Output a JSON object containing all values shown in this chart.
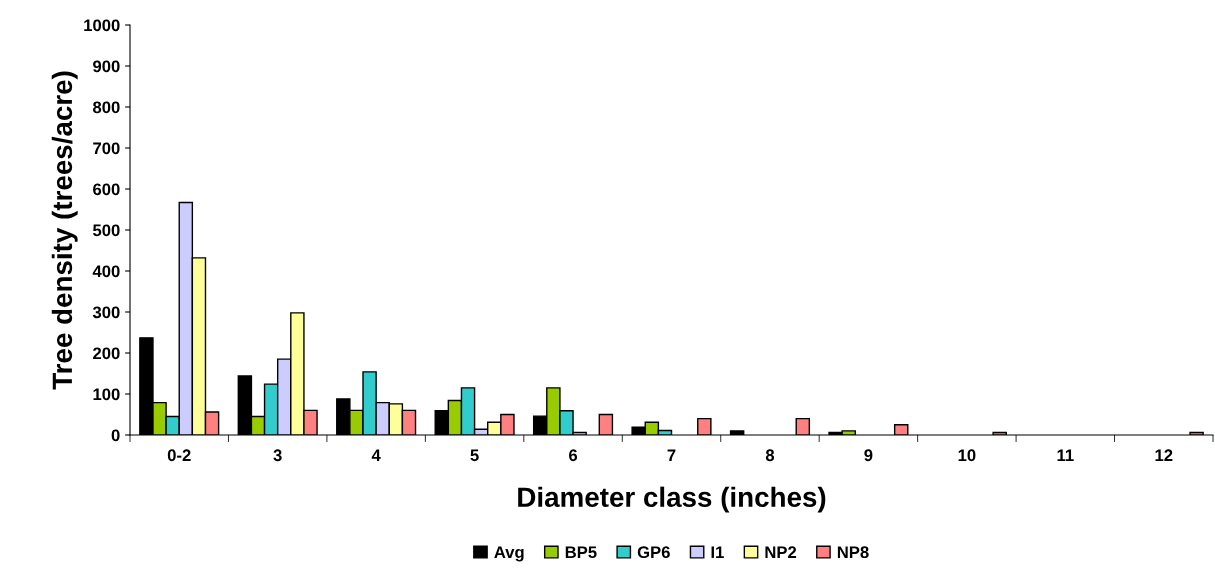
{
  "chart_data": {
    "type": "bar",
    "xlabel": "Diameter class (inches)",
    "ylabel": "Tree density (trees/acre)",
    "categories": [
      "0-2",
      "3",
      "4",
      "5",
      "6",
      "7",
      "8",
      "9",
      "10",
      "11",
      "12"
    ],
    "series": [
      {
        "name": "Avg",
        "color": "#000000",
        "values": [
          237,
          144,
          88,
          59,
          46,
          19,
          10,
          6,
          null,
          null,
          null
        ]
      },
      {
        "name": "BP5",
        "color": "#99cc00",
        "values": [
          79,
          45,
          60,
          84,
          115,
          31,
          null,
          10,
          null,
          null,
          null
        ]
      },
      {
        "name": "GP6",
        "color": "#33cccc",
        "values": [
          45,
          124,
          154,
          115,
          59,
          11,
          null,
          null,
          null,
          null,
          null
        ]
      },
      {
        "name": "I1",
        "color": "#ccccff",
        "values": [
          567,
          185,
          79,
          14,
          6,
          null,
          null,
          null,
          null,
          null,
          null
        ]
      },
      {
        "name": "NP2",
        "color": "#ffff99",
        "values": [
          432,
          298,
          76,
          31,
          null,
          null,
          null,
          null,
          null,
          null,
          null
        ]
      },
      {
        "name": "NP8",
        "color": "#ff8080",
        "values": [
          56,
          60,
          60,
          50,
          50,
          40,
          40,
          25,
          6,
          null,
          6
        ]
      }
    ],
    "ylim": [
      0,
      1000
    ],
    "yticks": [
      0,
      100,
      200,
      300,
      400,
      500,
      600,
      700,
      800,
      900,
      1000
    ],
    "grid": false,
    "legend": "bottom"
  }
}
